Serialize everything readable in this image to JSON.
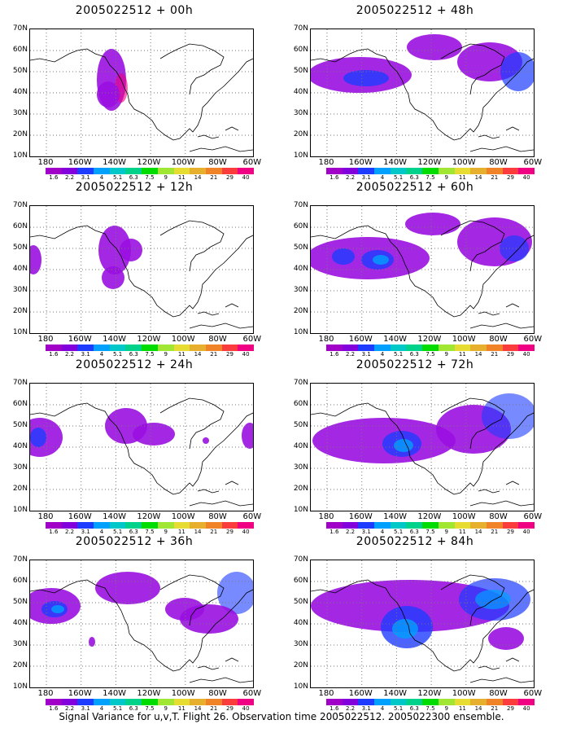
{
  "panels": [
    {
      "id": "p00",
      "title": "2005022512 + 00h"
    },
    {
      "id": "p12",
      "title": "2005022512 + 12h"
    },
    {
      "id": "p24",
      "title": "2005022512 + 24h"
    },
    {
      "id": "p36",
      "title": "2005022512 + 36h"
    },
    {
      "id": "p48",
      "title": "2005022512 + 48h"
    },
    {
      "id": "p60",
      "title": "2005022512 + 60h"
    },
    {
      "id": "p72",
      "title": "2005022512 + 72h"
    },
    {
      "id": "p84",
      "title": "2005022512 + 84h"
    }
  ],
  "lat_labels": [
    "70N",
    "60N",
    "50N",
    "40N",
    "30N",
    "20N",
    "10N"
  ],
  "lon_labels": [
    "180",
    "160W",
    "140W",
    "120W",
    "100W",
    "80W",
    "60W"
  ],
  "colorbar": {
    "labels": [
      "1.6",
      "2.2",
      "3.1",
      "4",
      "5.1",
      "6.3",
      "7.5",
      "9",
      "11",
      "14",
      "21",
      "29",
      "40"
    ],
    "colors": [
      "#a000c8",
      "#8200dc",
      "#1e3cff",
      "#00a0ff",
      "#00c8c8",
      "#00d28c",
      "#00dc00",
      "#a0e632",
      "#e6dc32",
      "#e6af2d",
      "#f08228",
      "#fa3c3c",
      "#f00082"
    ]
  },
  "footer": "Signal Variance for u,v,T. Flight 26. Observation time 2005022512. 2005022300 ensemble."
}
